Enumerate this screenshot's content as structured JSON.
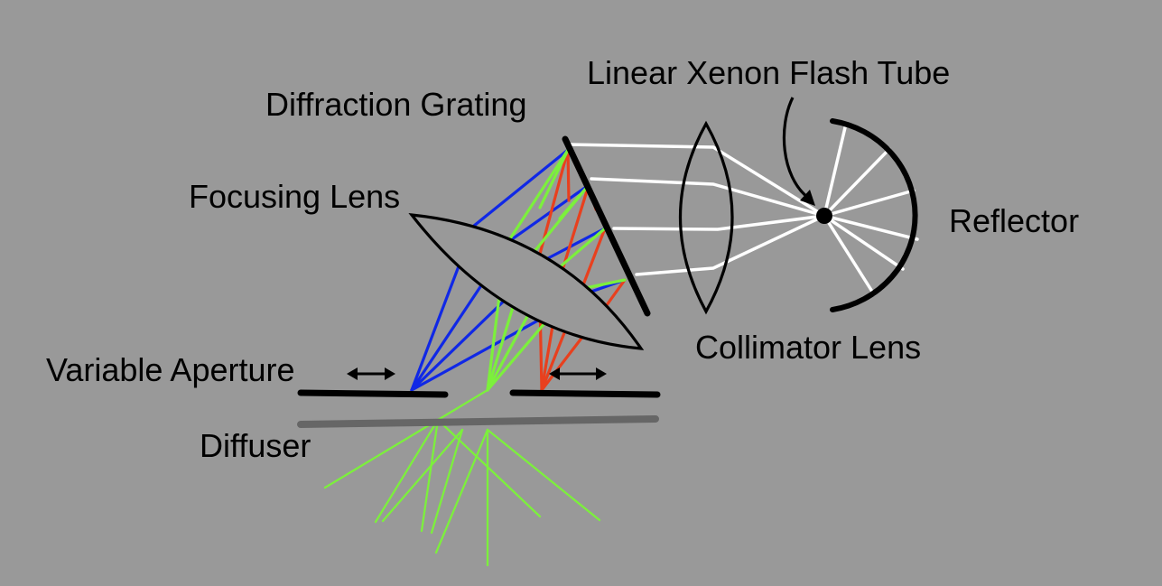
{
  "background_color": "#999999",
  "labels": {
    "flash_tube": "Linear Xenon Flash Tube",
    "grating": "Diffraction Grating",
    "focusing_lens": "Focusing Lens",
    "reflector": "Reflector",
    "collimator_lens": "Collimator Lens",
    "aperture": "Variable Aperture",
    "diffuser": "Diffuser"
  },
  "colors": {
    "white_light": "#ffffff",
    "blue": "#1028e6",
    "green": "#7cf03c",
    "red": "#e8401e",
    "component": "#000000",
    "diffuser": "#666666"
  },
  "icons": {
    "aperture_arrow": "double-arrow-icon",
    "lamp": "filled-circle-icon"
  }
}
